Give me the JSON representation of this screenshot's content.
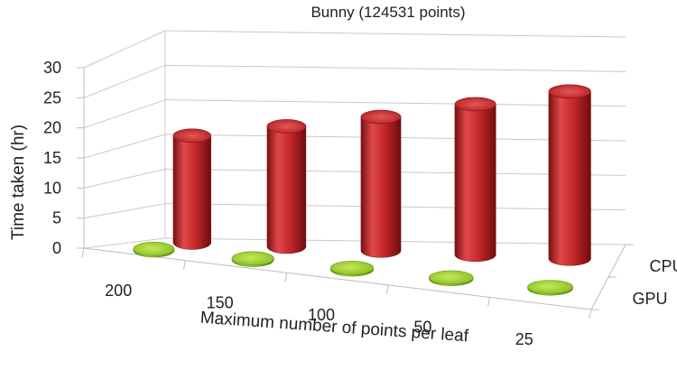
{
  "chart_data": {
    "type": "bar",
    "style": "3d-cylinder",
    "title": "Bunny (124531 points)",
    "xlabel": "Maximum number of points per leaf",
    "ylabel": "Time taken (hr)",
    "categories": [
      "200",
      "150",
      "100",
      "50",
      "25"
    ],
    "ylim": [
      0,
      30
    ],
    "yticks": [
      0,
      5,
      10,
      15,
      20,
      25,
      30
    ],
    "grid": true,
    "series": [
      {
        "name": "CPU",
        "values": [
          16,
          18,
          20,
          22.5,
          25
        ],
        "color": "#c0282a"
      },
      {
        "name": "GPU",
        "values": [
          0.25,
          0.25,
          0.25,
          0.25,
          0.25
        ],
        "color": "#8fc226"
      }
    ]
  }
}
